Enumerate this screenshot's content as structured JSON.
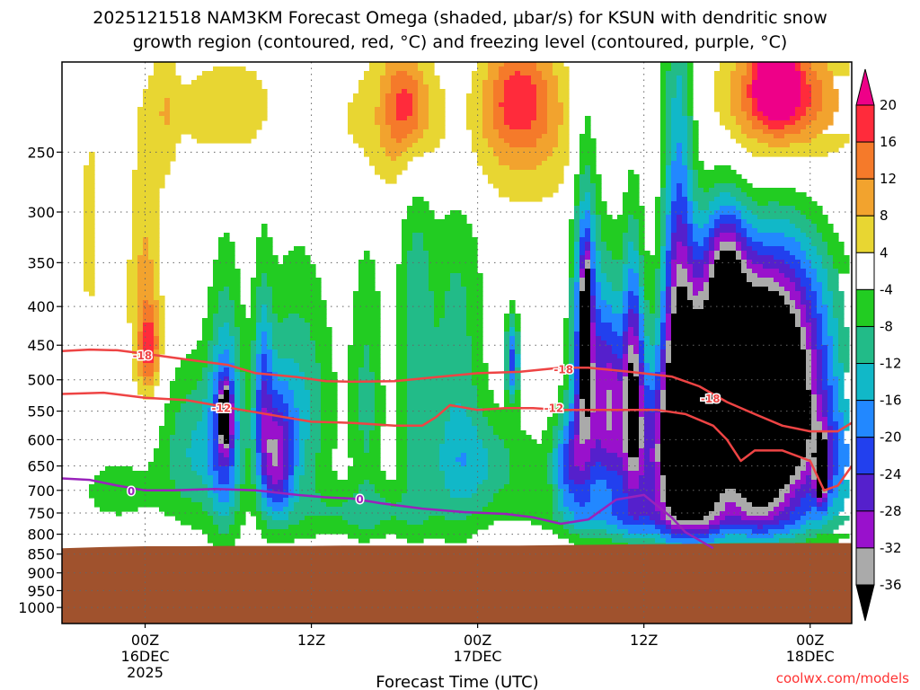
{
  "title": {
    "line1": "2025121518 NAM3KM Forecast Omega (shaded, µbar/s) for KSUN with dendritic snow",
    "line2": "growth region (contoured, red, °C) and freezing level (contoured, purple, °C)"
  },
  "xlabel": "Forecast Time (UTC)",
  "credit": "coolwx.com/models",
  "colors": {
    "ground": "#a0522d",
    "dendritic_contour": "#ee4444",
    "freezing_contour": "#9922bb",
    "gridline": "#666666"
  },
  "chart_data": {
    "type": "heatmap",
    "x_axis": {
      "type": "time",
      "range_hours_from_start": [
        0,
        57
      ],
      "start": "2025-12-15 18Z",
      "ticks": [
        {
          "hour": 6,
          "lines": [
            "00Z",
            "16DEC",
            "2025"
          ]
        },
        {
          "hour": 18,
          "lines": [
            "12Z",
            "",
            ""
          ]
        },
        {
          "hour": 30,
          "lines": [
            "00Z",
            "17DEC",
            ""
          ]
        },
        {
          "hour": 42,
          "lines": [
            "12Z",
            "",
            ""
          ]
        },
        {
          "hour": 54,
          "lines": [
            "00Z",
            "18DEC",
            ""
          ]
        }
      ]
    },
    "y_axis": {
      "type": "log",
      "unit": "hPa",
      "range": [
        1050,
        190
      ],
      "ticks": [
        250,
        300,
        350,
        400,
        450,
        500,
        550,
        600,
        650,
        700,
        750,
        800,
        850,
        900,
        950,
        1000
      ]
    },
    "grid": true,
    "colorbar": {
      "position": "right",
      "levels": [
        -36,
        -32,
        -28,
        -24,
        -20,
        -16,
        -12,
        -8,
        -4,
        4,
        8,
        12,
        16,
        20
      ],
      "labels": [
        "20",
        "16",
        "12",
        "8",
        "4",
        "-4",
        "-8",
        "-12",
        "-16",
        "-20",
        "-24",
        "-28",
        "-32",
        "-36"
      ],
      "colors": [
        {
          "min": 20,
          "max": null,
          "color": "#ee0088"
        },
        {
          "min": 16,
          "max": 20,
          "color": "#ff2b3b"
        },
        {
          "min": 12,
          "max": 16,
          "color": "#f57a2a"
        },
        {
          "min": 8,
          "max": 12,
          "color": "#f2a32e"
        },
        {
          "min": 4,
          "max": 8,
          "color": "#e8d632"
        },
        {
          "min": -4,
          "max": 4,
          "color": "#ffffff"
        },
        {
          "min": -8,
          "max": -4,
          "color": "#22cc22"
        },
        {
          "min": -12,
          "max": -8,
          "color": "#22bb88"
        },
        {
          "min": -16,
          "max": -12,
          "color": "#11b8c8"
        },
        {
          "min": -20,
          "max": -16,
          "color": "#2288ff"
        },
        {
          "min": -24,
          "max": -20,
          "color": "#2240ee"
        },
        {
          "min": -28,
          "max": -24,
          "color": "#5520cc"
        },
        {
          "min": -32,
          "max": -28,
          "color": "#9911cc"
        },
        {
          "min": -36,
          "max": -32,
          "color": "#aaaaaa"
        },
        {
          "min": null,
          "max": -36,
          "color": "#000000"
        }
      ]
    },
    "ground_top_hPa": {
      "hours": [
        0,
        3,
        6,
        9,
        12,
        15,
        18,
        21,
        24,
        27,
        30,
        33,
        36,
        39,
        42,
        45,
        48,
        51,
        54,
        57
      ],
      "values": [
        835,
        832,
        830,
        830,
        829,
        829,
        829,
        828,
        828,
        828,
        828,
        828,
        827,
        826,
        825,
        824,
        823,
        822,
        822,
        822
      ]
    },
    "omega_features": [
      {
        "hour": 2.0,
        "pressure": 320,
        "halfwidth_hours": 1.0,
        "halfdepth_hPa": 150,
        "value": 5
      },
      {
        "hour": 6.0,
        "pressure": 380,
        "halfwidth_hours": 1.3,
        "halfdepth_hPa": 160,
        "value": 9
      },
      {
        "hour": 6.3,
        "pressure": 455,
        "halfwidth_hours": 0.7,
        "halfdepth_hPa": 55,
        "value": 14
      },
      {
        "hour": 7.5,
        "pressure": 220,
        "halfwidth_hours": 0.8,
        "halfdepth_hPa": 50,
        "value": 5
      },
      {
        "hour": 12.0,
        "pressure": 220,
        "halfwidth_hours": 4.5,
        "halfdepth_hPa": 40,
        "value": 7
      },
      {
        "hour": 24.5,
        "pressure": 230,
        "halfwidth_hours": 4.5,
        "halfdepth_hPa": 60,
        "value": 9
      },
      {
        "hour": 25.0,
        "pressure": 215,
        "halfwidth_hours": 1.5,
        "halfdepth_hPa": 35,
        "value": 13
      },
      {
        "hour": 33.5,
        "pressure": 240,
        "halfwidth_hours": 5.0,
        "halfdepth_hPa": 60,
        "value": 8
      },
      {
        "hour": 33.0,
        "pressure": 210,
        "halfwidth_hours": 2.5,
        "halfdepth_hPa": 35,
        "value": 13
      },
      {
        "hour": 51.5,
        "pressure": 250,
        "halfwidth_hours": 6.0,
        "halfdepth_hPa": 80,
        "value": 10
      },
      {
        "hour": 52.0,
        "pressure": 210,
        "halfwidth_hours": 3.5,
        "halfdepth_hPa": 35,
        "value": 19
      },
      {
        "hour": 51.5,
        "pressure": 200,
        "halfwidth_hours": 1.2,
        "halfdepth_hPa": 20,
        "value": 24
      },
      {
        "hour": 11.8,
        "pressure": 580,
        "halfwidth_hours": 1.2,
        "halfdepth_hPa": 200,
        "value": -21
      },
      {
        "hour": 11.8,
        "pressure": 560,
        "halfwidth_hours": 0.4,
        "halfdepth_hPa": 45,
        "value": -36
      },
      {
        "hour": 14.5,
        "pressure": 520,
        "halfwidth_hours": 0.7,
        "halfdepth_hPa": 160,
        "value": -16
      },
      {
        "hour": 15.5,
        "pressure": 640,
        "halfwidth_hours": 1.2,
        "halfdepth_hPa": 120,
        "value": -24
      },
      {
        "hour": 17.0,
        "pressure": 550,
        "halfwidth_hours": 2.5,
        "halfdepth_hPa": 200,
        "value": -13
      },
      {
        "hour": 9.5,
        "pressure": 620,
        "halfwidth_hours": 2.5,
        "halfdepth_hPa": 150,
        "value": -12
      },
      {
        "hour": 4.0,
        "pressure": 700,
        "halfwidth_hours": 3.0,
        "halfdepth_hPa": 80,
        "value": -6
      },
      {
        "hour": 22.0,
        "pressure": 530,
        "halfwidth_hours": 1.2,
        "halfdepth_hPa": 220,
        "value": -9
      },
      {
        "hour": 22.0,
        "pressure": 750,
        "halfwidth_hours": 5.0,
        "halfdepth_hPa": 60,
        "value": -8
      },
      {
        "hour": 25.5,
        "pressure": 450,
        "halfwidth_hours": 1.3,
        "halfdepth_hPa": 300,
        "value": -10
      },
      {
        "hour": 28.5,
        "pressure": 500,
        "halfwidth_hours": 2.0,
        "halfdepth_hPa": 300,
        "value": -10
      },
      {
        "hour": 32.5,
        "pressure": 470,
        "halfwidth_hours": 0.5,
        "halfdepth_hPa": 60,
        "value": -21
      },
      {
        "hour": 30.5,
        "pressure": 650,
        "halfwidth_hours": 4.0,
        "halfdepth_hPa": 100,
        "value": -10
      },
      {
        "hour": 37.8,
        "pressure": 480,
        "halfwidth_hours": 1.0,
        "halfdepth_hPa": 220,
        "value": -30
      },
      {
        "hour": 37.8,
        "pressure": 430,
        "halfwidth_hours": 0.3,
        "halfdepth_hPa": 80,
        "value": -37
      },
      {
        "hour": 39.5,
        "pressure": 520,
        "halfwidth_hours": 1.0,
        "halfdepth_hPa": 160,
        "value": -23
      },
      {
        "hour": 41.2,
        "pressure": 500,
        "halfwidth_hours": 0.8,
        "halfdepth_hPa": 180,
        "value": -28
      },
      {
        "hour": 42.0,
        "pressure": 640,
        "halfwidth_hours": 3.5,
        "halfdepth_hPa": 170,
        "value": -20
      },
      {
        "hour": 36.5,
        "pressure": 650,
        "halfwidth_hours": 1.2,
        "halfdepth_hPa": 100,
        "value": -18
      },
      {
        "hour": 44.5,
        "pressure": 420,
        "halfwidth_hours": 1.2,
        "halfdepth_hPa": 260,
        "value": -28
      },
      {
        "hour": 45.0,
        "pressure": 620,
        "halfwidth_hours": 2.0,
        "halfdepth_hPa": 180,
        "value": -28
      },
      {
        "hour": 46.5,
        "pressure": 560,
        "halfwidth_hours": 1.5,
        "halfdepth_hPa": 200,
        "value": -32
      },
      {
        "hour": 50.5,
        "pressure": 560,
        "halfwidth_hours": 3.5,
        "halfdepth_hPa": 220,
        "value": -33
      },
      {
        "hour": 50.0,
        "pressure": 560,
        "halfwidth_hours": 2.5,
        "halfdepth_hPa": 150,
        "value": -40
      },
      {
        "hour": 48.0,
        "pressure": 360,
        "halfwidth_hours": 1.5,
        "halfdepth_hPa": 80,
        "value": -26
      },
      {
        "hour": 53.0,
        "pressure": 470,
        "halfwidth_hours": 3.5,
        "halfdepth_hPa": 200,
        "value": -20
      },
      {
        "hour": 54.8,
        "pressure": 660,
        "halfwidth_hours": 0.4,
        "halfdepth_hPa": 60,
        "value": -36
      },
      {
        "hour": 55.5,
        "pressure": 650,
        "halfwidth_hours": 2.5,
        "halfdepth_hPa": 120,
        "value": -14
      },
      {
        "hour": 50.0,
        "pressure": 760,
        "halfwidth_hours": 6.0,
        "halfdepth_hPa": 50,
        "value": -8
      },
      {
        "hour": 40.0,
        "pressure": 760,
        "halfwidth_hours": 6.0,
        "halfdepth_hPa": 50,
        "value": -8
      }
    ],
    "contours": [
      {
        "label": "-18",
        "color": "#ee4444",
        "label_positions": [
          {
            "hour": 5.8,
            "pressure": 465
          },
          {
            "hour": 36.2,
            "pressure": 485
          },
          {
            "hour": 46.8,
            "pressure": 530
          }
        ],
        "points": [
          [
            0,
            458
          ],
          [
            2,
            456
          ],
          [
            4,
            457
          ],
          [
            6,
            462
          ],
          [
            9,
            470
          ],
          [
            12,
            478
          ],
          [
            14,
            490
          ],
          [
            17,
            496
          ],
          [
            19,
            502
          ],
          [
            21,
            503
          ],
          [
            24,
            502
          ],
          [
            27,
            496
          ],
          [
            30,
            490
          ],
          [
            33,
            488
          ],
          [
            36,
            482
          ],
          [
            38,
            482
          ],
          [
            41,
            488
          ],
          [
            44,
            495
          ],
          [
            46,
            510
          ],
          [
            48,
            535
          ],
          [
            50,
            555
          ],
          [
            52,
            575
          ],
          [
            54,
            585
          ],
          [
            56,
            585
          ],
          [
            57,
            570
          ]
        ]
      },
      {
        "label": "-12",
        "color": "#ee4444",
        "label_positions": [
          {
            "hour": 11.5,
            "pressure": 545
          },
          {
            "hour": 35.5,
            "pressure": 545
          }
        ],
        "points": [
          [
            0,
            522
          ],
          [
            3,
            520
          ],
          [
            6,
            528
          ],
          [
            9,
            532
          ],
          [
            11,
            540
          ],
          [
            13,
            548
          ],
          [
            16,
            560
          ],
          [
            18,
            568
          ],
          [
            21,
            570
          ],
          [
            24,
            575
          ],
          [
            26,
            575
          ],
          [
            27,
            560
          ],
          [
            28,
            540
          ],
          [
            30,
            548
          ],
          [
            32,
            545
          ],
          [
            34,
            545
          ],
          [
            36,
            548
          ],
          [
            38,
            548
          ],
          [
            41,
            548
          ],
          [
            43,
            548
          ],
          [
            45,
            555
          ],
          [
            47,
            575
          ],
          [
            48,
            600
          ],
          [
            49,
            640
          ],
          [
            50,
            620
          ],
          [
            52,
            620
          ],
          [
            54,
            640
          ],
          [
            55,
            700
          ],
          [
            56,
            690
          ],
          [
            57,
            650
          ]
        ]
      },
      {
        "label": "0",
        "color": "#9922bb",
        "label_positions": [
          {
            "hour": 5.0,
            "pressure": 702
          },
          {
            "hour": 21.5,
            "pressure": 720
          }
        ],
        "points": [
          [
            0,
            675
          ],
          [
            2,
            678
          ],
          [
            4,
            690
          ],
          [
            6,
            700
          ],
          [
            8,
            700
          ],
          [
            11,
            697
          ],
          [
            14,
            700
          ],
          [
            17,
            710
          ],
          [
            19,
            715
          ],
          [
            21,
            718
          ],
          [
            23,
            728
          ],
          [
            26,
            740
          ],
          [
            29,
            748
          ],
          [
            32,
            752
          ],
          [
            34,
            760
          ],
          [
            36,
            775
          ],
          [
            38,
            765
          ],
          [
            40,
            720
          ],
          [
            42,
            710
          ],
          [
            44,
            760
          ],
          [
            45,
            795
          ],
          [
            47,
            835
          ]
        ]
      }
    ]
  }
}
